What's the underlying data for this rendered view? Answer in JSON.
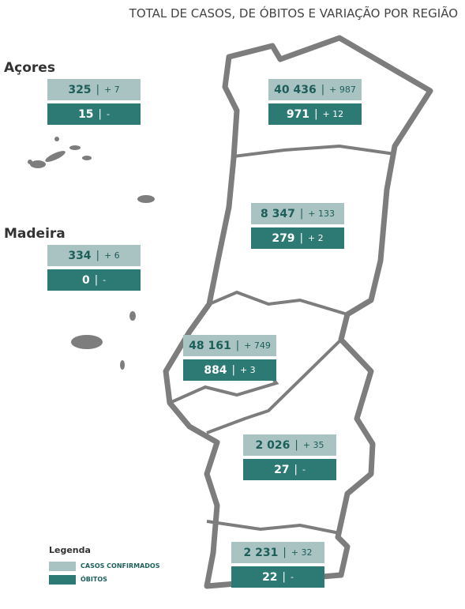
{
  "title": "TOTAL DE CASOS, DE ÓBITOS E VARIAÇÃO POR REGIÃO",
  "island_labels": [
    "Açores",
    "Madeira"
  ],
  "regions": [
    {
      "cases": "325",
      "cases_change": "+ 7",
      "deaths": "15",
      "deaths_change": "-"
    },
    {
      "cases": "334",
      "cases_change": "+ 6",
      "deaths": "0",
      "deaths_change": "-"
    },
    {
      "cases": "40 436",
      "cases_change": "+ 987",
      "deaths": "971",
      "deaths_change": "+ 12"
    },
    {
      "cases": "8 347",
      "cases_change": "+ 133",
      "deaths": "279",
      "deaths_change": "+ 2"
    },
    {
      "cases": "48 161",
      "cases_change": "+ 749",
      "deaths": "884",
      "deaths_change": "+ 3"
    },
    {
      "cases": "2 026",
      "cases_change": "+ 35",
      "deaths": "27",
      "deaths_change": "-"
    },
    {
      "cases": "2 231",
      "cases_change": "+ 32",
      "deaths": "22",
      "deaths_change": "-"
    }
  ],
  "legend": {
    "title": "Legenda",
    "items": [
      "CASOS CONFIRMADOS",
      "ÓBITOS"
    ]
  }
}
